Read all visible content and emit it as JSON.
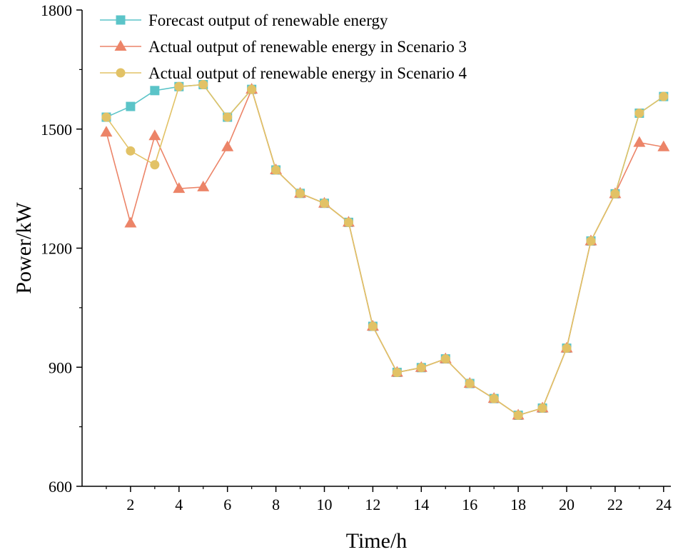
{
  "chart_data": {
    "type": "line",
    "title": "",
    "xlabel": "Time/h",
    "ylabel": "Power/kW",
    "xlim": [
      0,
      24.3
    ],
    "ylim": [
      600,
      1800
    ],
    "xticks": [
      2,
      4,
      6,
      8,
      10,
      12,
      14,
      16,
      18,
      20,
      22,
      24
    ],
    "yticks": [
      600,
      900,
      1200,
      1500,
      1800
    ],
    "x": [
      1,
      2,
      3,
      4,
      5,
      6,
      7,
      8,
      9,
      10,
      11,
      12,
      13,
      14,
      15,
      16,
      17,
      18,
      19,
      20,
      21,
      22,
      23,
      24
    ],
    "legend_position": "top-left",
    "series": [
      {
        "name": "Forecast output of renewable energy",
        "color": "#5bc4c8",
        "marker": "square",
        "values": [
          1530,
          1557,
          1597,
          1607,
          1612,
          1530,
          1600,
          1397,
          1338,
          1313,
          1265,
          1003,
          887,
          899,
          921,
          859,
          821,
          779,
          797,
          948,
          1218,
          1337,
          1540,
          1582
        ]
      },
      {
        "name": "Actual output of renewable energy in Scenario 3",
        "color": "#ec8468",
        "marker": "triangle",
        "values": [
          1492,
          1263,
          1483,
          1350,
          1354,
          1455,
          1600,
          1397,
          1338,
          1313,
          1265,
          1003,
          887,
          899,
          921,
          859,
          821,
          779,
          797,
          948,
          1218,
          1337,
          1466,
          1455
        ]
      },
      {
        "name": "Actual output of renewable energy in Scenario 4",
        "color": "#e2c266",
        "marker": "circle",
        "values": [
          1530,
          1445,
          1410,
          1607,
          1612,
          1530,
          1600,
          1397,
          1338,
          1313,
          1265,
          1003,
          887,
          899,
          921,
          859,
          821,
          779,
          797,
          948,
          1218,
          1337,
          1540,
          1582
        ]
      }
    ]
  }
}
